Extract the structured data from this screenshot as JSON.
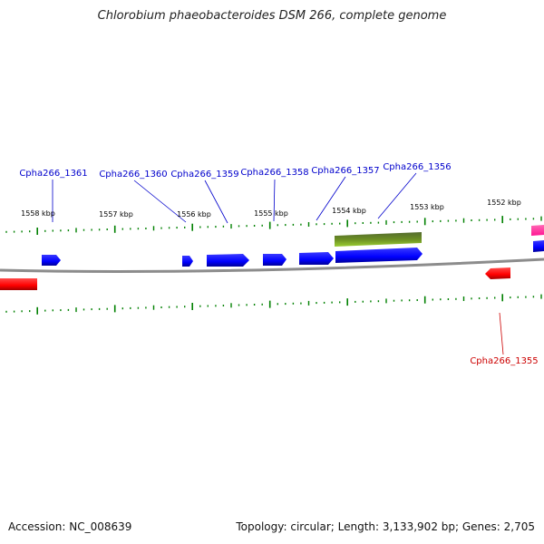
{
  "title": "Chlorobium phaeobacteroides DSM 266, complete genome",
  "footer": {
    "accession": "Accession: NC_008639",
    "summary": "Topology: circular; Length: 3,133,902 bp; Genes: 2,705"
  },
  "colors": {
    "forward_gene": "#0000ff",
    "reverse_gene": "#ff0000",
    "rna_feature": "#6b8e23",
    "other_feature": "#ff1493",
    "tick": "#008000",
    "backbone": "#808080",
    "label_forward": "#0000cc",
    "label_reverse": "#cc0000"
  },
  "ticks": [
    {
      "label": "1558 kbp"
    },
    {
      "label": "1557 kbp"
    },
    {
      "label": "1556 kbp"
    },
    {
      "label": "1555 kbp"
    },
    {
      "label": "1554 kbp"
    },
    {
      "label": "1553 kbp"
    },
    {
      "label": "1552 kbp"
    }
  ],
  "gene_labels": [
    {
      "text": "Cpha266_1361",
      "strand": "forward"
    },
    {
      "text": "Cpha266_1360",
      "strand": "forward"
    },
    {
      "text": "Cpha266_1359",
      "strand": "forward"
    },
    {
      "text": "Cpha266_1358",
      "strand": "forward"
    },
    {
      "text": "Cpha266_1357",
      "strand": "forward"
    },
    {
      "text": "Cpha266_1356",
      "strand": "forward"
    },
    {
      "text": "Cpha266_1355",
      "strand": "reverse"
    }
  ]
}
